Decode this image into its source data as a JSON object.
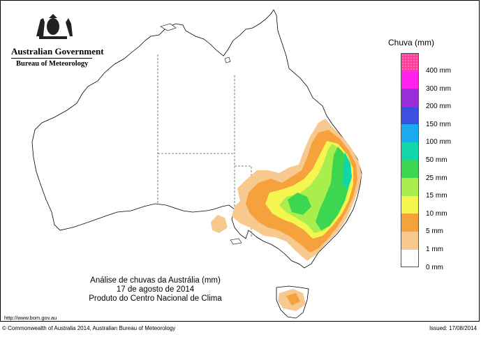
{
  "header": {
    "government": "Australian Government",
    "bureau": "Bureau of Meteorology",
    "logo_icon": "coat-of-arms-icon"
  },
  "legend": {
    "title": "Chuva (mm)",
    "items": [
      {
        "label": "400 mm",
        "color": "#ff3d9a",
        "dotted": true
      },
      {
        "label": "300 mm",
        "color": "#ff22ee"
      },
      {
        "label": "200 mm",
        "color": "#9a2ed8"
      },
      {
        "label": "150 mm",
        "color": "#3b4fe0"
      },
      {
        "label": "100 mm",
        "color": "#1aaaf0"
      },
      {
        "label": "50 mm",
        "color": "#11d6a8"
      },
      {
        "label": "25 mm",
        "color": "#3cd651"
      },
      {
        "label": "15 mm",
        "color": "#a8ee4c"
      },
      {
        "label": "10 mm",
        "color": "#f5f550"
      },
      {
        "label": "5 mm",
        "color": "#f5a23c"
      },
      {
        "label": "1 mm",
        "color": "#f8c98e"
      },
      {
        "label": "0 mm",
        "color": "#ffffff"
      }
    ]
  },
  "caption": {
    "line1": "Análise de chuvas da Austrália (mm)",
    "line2": "17 de agosto de 2014",
    "line3": "Produto do Centro Nacional de Clima"
  },
  "footer": {
    "url": "http://www.bom.gov.au",
    "copyright": "© Commonwealth of Australia 2014, Australian Bureau of Meteorology",
    "issued": "Issued: 17/08/2014"
  }
}
